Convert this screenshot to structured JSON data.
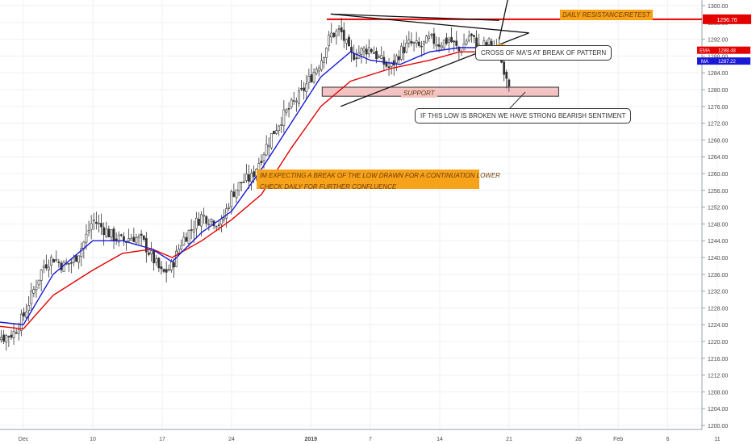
{
  "chart_data": {
    "type": "candlestick",
    "instrument_hint": "gold",
    "ylim": [
      1198,
      1302
    ],
    "y_ticks": [
      1200,
      1204,
      1208,
      1212,
      1216,
      1220,
      1224,
      1228,
      1232,
      1236,
      1240,
      1244,
      1248,
      1252,
      1256,
      1260,
      1264,
      1268,
      1272,
      1276,
      1280,
      1284,
      1288,
      1292,
      1296,
      1300
    ],
    "x_tick_labels": [
      "Dec",
      "10",
      "17",
      "24",
      "2019",
      "7",
      "14",
      "21",
      "28",
      "Feb",
      "6",
      "11"
    ],
    "x_tick_dates": [
      "2018-12-03",
      "2018-12-10",
      "2018-12-17",
      "2018-12-24",
      "2019-01-01",
      "2019-01-07",
      "2019-01-14",
      "2019-01-21",
      "2019-01-28",
      "2019-02-01",
      "2019-02-06",
      "2019-02-11"
    ],
    "price_path": [
      [
        "2018-11-29",
        1225
      ],
      [
        "2018-11-30",
        1222
      ],
      [
        "2018-12-01",
        1221
      ],
      [
        "2018-12-02",
        1222
      ],
      [
        "2018-12-03",
        1226
      ],
      [
        "2018-12-04",
        1232
      ],
      [
        "2018-12-05",
        1238
      ],
      [
        "2018-12-06",
        1240
      ],
      [
        "2018-12-07",
        1238
      ],
      [
        "2018-12-08",
        1239
      ],
      [
        "2018-12-09",
        1243
      ],
      [
        "2018-12-10",
        1249
      ],
      [
        "2018-12-11",
        1247
      ],
      [
        "2018-12-12",
        1245
      ],
      [
        "2018-12-13",
        1244
      ],
      [
        "2018-12-14",
        1245
      ],
      [
        "2018-12-15",
        1244
      ],
      [
        "2018-12-16",
        1240
      ],
      [
        "2018-12-17",
        1236
      ],
      [
        "2018-12-18",
        1238
      ],
      [
        "2018-12-19",
        1244
      ],
      [
        "2018-12-20",
        1247
      ],
      [
        "2018-12-21",
        1250
      ],
      [
        "2018-12-22",
        1249
      ],
      [
        "2018-12-23",
        1248
      ],
      [
        "2018-12-24",
        1255
      ],
      [
        "2018-12-25",
        1258
      ],
      [
        "2018-12-26",
        1259
      ],
      [
        "2018-12-27",
        1264
      ],
      [
        "2018-12-28",
        1269
      ],
      [
        "2018-12-29",
        1273
      ],
      [
        "2018-12-30",
        1276
      ],
      [
        "2018-12-31",
        1279
      ],
      [
        "2019-01-01",
        1283
      ],
      [
        "2019-01-02",
        1287
      ],
      [
        "2019-01-03",
        1293
      ],
      [
        "2019-01-04",
        1294
      ],
      [
        "2019-01-05",
        1288
      ],
      [
        "2019-01-06",
        1289
      ],
      [
        "2019-01-07",
        1290
      ],
      [
        "2019-01-08",
        1287
      ],
      [
        "2019-01-09",
        1285
      ],
      [
        "2019-01-10",
        1289
      ],
      [
        "2019-01-11",
        1291
      ],
      [
        "2019-01-12",
        1290
      ],
      [
        "2019-01-13",
        1292
      ],
      [
        "2019-01-14",
        1291
      ],
      [
        "2019-01-15",
        1292
      ],
      [
        "2019-01-16",
        1289
      ],
      [
        "2019-01-17",
        1293
      ],
      [
        "2019-01-18",
        1290
      ],
      [
        "2019-01-19",
        1291
      ],
      [
        "2019-01-20",
        1288
      ],
      [
        "2019-01-21",
        1282
      ]
    ],
    "ma_red_path": [
      [
        "2018-11-29",
        1224
      ],
      [
        "2018-12-03",
        1223
      ],
      [
        "2018-12-06",
        1231
      ],
      [
        "2018-12-10",
        1237
      ],
      [
        "2018-12-13",
        1241
      ],
      [
        "2018-12-16",
        1242
      ],
      [
        "2018-12-18",
        1240
      ],
      [
        "2018-12-21",
        1244
      ],
      [
        "2018-12-24",
        1249
      ],
      [
        "2018-12-27",
        1255
      ],
      [
        "2018-12-30",
        1266
      ],
      [
        "2019-01-02",
        1276
      ],
      [
        "2019-01-05",
        1282
      ],
      [
        "2019-01-09",
        1285
      ],
      [
        "2019-01-13",
        1287
      ],
      [
        "2019-01-16",
        1289
      ],
      [
        "2019-01-19",
        1289
      ],
      [
        "2019-01-21",
        1288
      ]
    ],
    "ma_blue_path": [
      [
        "2018-11-29",
        1225
      ],
      [
        "2018-12-03",
        1224
      ],
      [
        "2018-12-06",
        1236
      ],
      [
        "2018-12-10",
        1244
      ],
      [
        "2018-12-13",
        1244
      ],
      [
        "2018-12-16",
        1242
      ],
      [
        "2018-12-18",
        1239
      ],
      [
        "2018-12-21",
        1246
      ],
      [
        "2018-12-24",
        1251
      ],
      [
        "2018-12-27",
        1261
      ],
      [
        "2018-12-30",
        1272
      ],
      [
        "2019-01-02",
        1283
      ],
      [
        "2019-01-05",
        1289
      ],
      [
        "2019-01-07",
        1287
      ],
      [
        "2019-01-10",
        1286
      ],
      [
        "2019-01-13",
        1289
      ],
      [
        "2019-01-16",
        1290
      ],
      [
        "2019-01-19",
        1290
      ],
      [
        "2019-01-21",
        1289
      ]
    ],
    "resistance": {
      "value": 1296.76,
      "label": "1296.76"
    },
    "ema_value": "1288.48",
    "ma_value": "1287.22",
    "ema_label": "EMA",
    "ma_label": "MA",
    "support_zone": {
      "from": 1279,
      "to": 1280,
      "x_from": "2019-01-01",
      "x_to": "2019-01-26"
    },
    "triangle_upper": [
      [
        "2019-01-03",
        1298
      ],
      [
        "2019-01-23",
        1293.5
      ]
    ],
    "triangle_lower": [
      [
        "2019-01-04",
        1276
      ],
      [
        "2019-01-23",
        1293.5
      ]
    ],
    "triangle_top": [
      [
        "2019-01-03",
        1298
      ],
      [
        "2019-01-20",
        1296.5
      ]
    ],
    "breakout_line": [
      [
        "2019-01-20",
        1292
      ],
      [
        "2019-01-21",
        1303
      ]
    ],
    "colors": {
      "up": "#333333",
      "down": "#333333",
      "ma_red": "#e50000",
      "ma_blue": "#1a1ad6",
      "resistance": "#e50000",
      "support_fill": "#f3c3c3",
      "note_bg": "#f7a21b"
    }
  },
  "annotations": {
    "resistance_note": "DAILY RESISTANCE/RETEST",
    "support_note": "SUPPORT",
    "cross_note": "CROSS OF MA'S AT BREAK OF PATTERN",
    "low_note": "IF THIS LOW IS BROKEN WE HAVE STRONG BEARISH SENTIMENT",
    "expect_note_1": "IM EXPECTING A BREAK OF THE LOW DRAWN FOR A CONTINUATION LOWER",
    "expect_note_2": "CHECK DAILY FOR FURTHER CONFLUENCE"
  }
}
